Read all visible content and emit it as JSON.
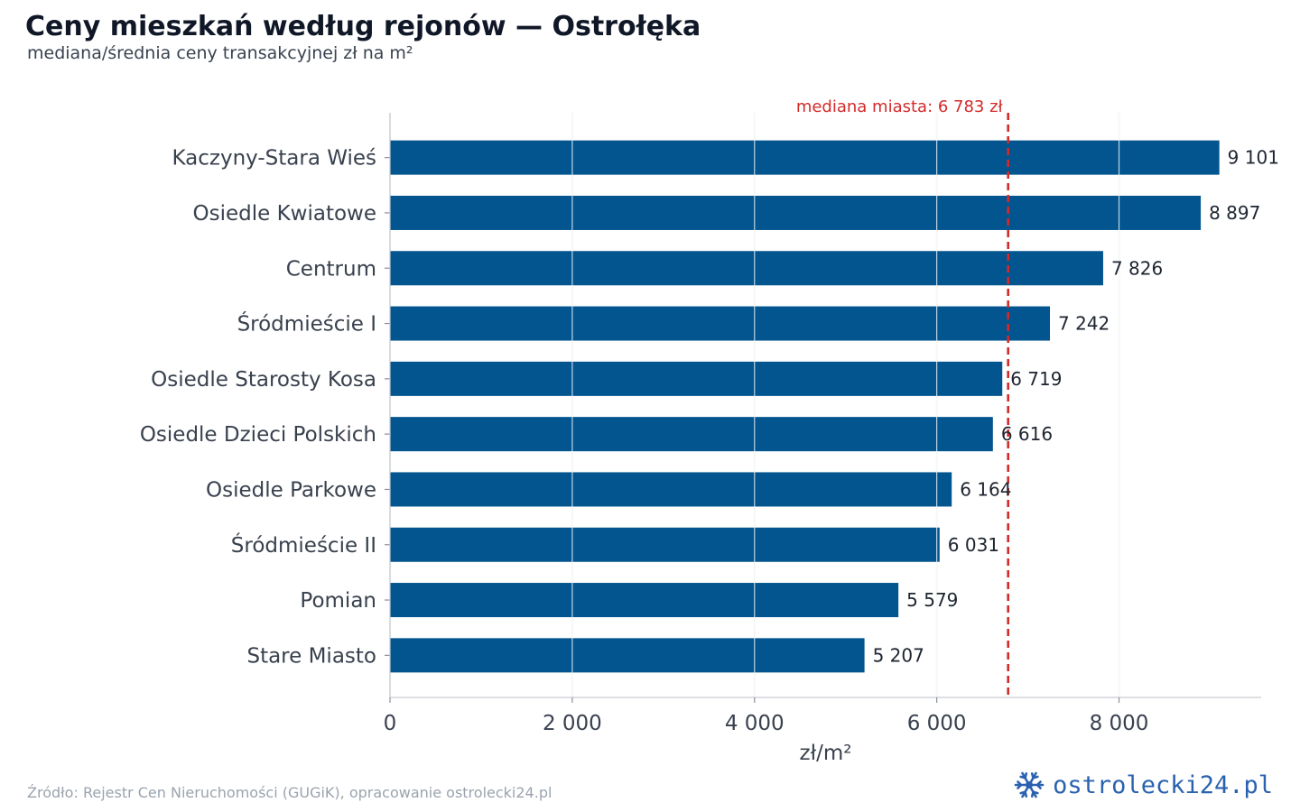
{
  "header": {
    "title": "Ceny mieszkań według rejonów — Ostrołęka",
    "subtitle": "mediana/średnia ceny transakcyjnej zł na m²"
  },
  "chart_data": {
    "type": "bar",
    "orientation": "horizontal",
    "categories": [
      "Kaczyny-Stara Wieś",
      "Osiedle Kwiatowe",
      "Centrum",
      "Śródmieście I",
      "Osiedle Starosty Kosa",
      "Osiedle Dzieci Polskich",
      "Osiedle Parkowe",
      "Śródmieście II",
      "Pomian",
      "Stare Miasto"
    ],
    "values": [
      9101,
      8897,
      7826,
      7242,
      6719,
      6616,
      6164,
      6031,
      5579,
      5207
    ],
    "value_labels": [
      "9 101",
      "8 897",
      "7 826",
      "7 242",
      "6 719",
      "6 616",
      "6 164",
      "6 031",
      "5 579",
      "5 207"
    ],
    "xlabel": "zł/m²",
    "xlim": [
      0,
      9560
    ],
    "xticks": [
      0,
      2000,
      4000,
      6000,
      8000
    ],
    "xtick_labels": [
      "0",
      "2 000",
      "4 000",
      "6 000",
      "8 000"
    ],
    "grid": "vertical",
    "bar_color": "#02558f",
    "reference_line": {
      "value": 6783,
      "label": "mediana miasta: 6 783 zł",
      "color": "#d42a2a",
      "style": "dashed"
    }
  },
  "footer": {
    "source": "Źródło: Rejestr Cen Nieruchomości (GUGiK), opracowanie ostrolecki24.pl",
    "logo_text": "ostrolecki24.pl",
    "logo_icon": "snowflake-icon",
    "logo_color": "#2a62b0"
  }
}
